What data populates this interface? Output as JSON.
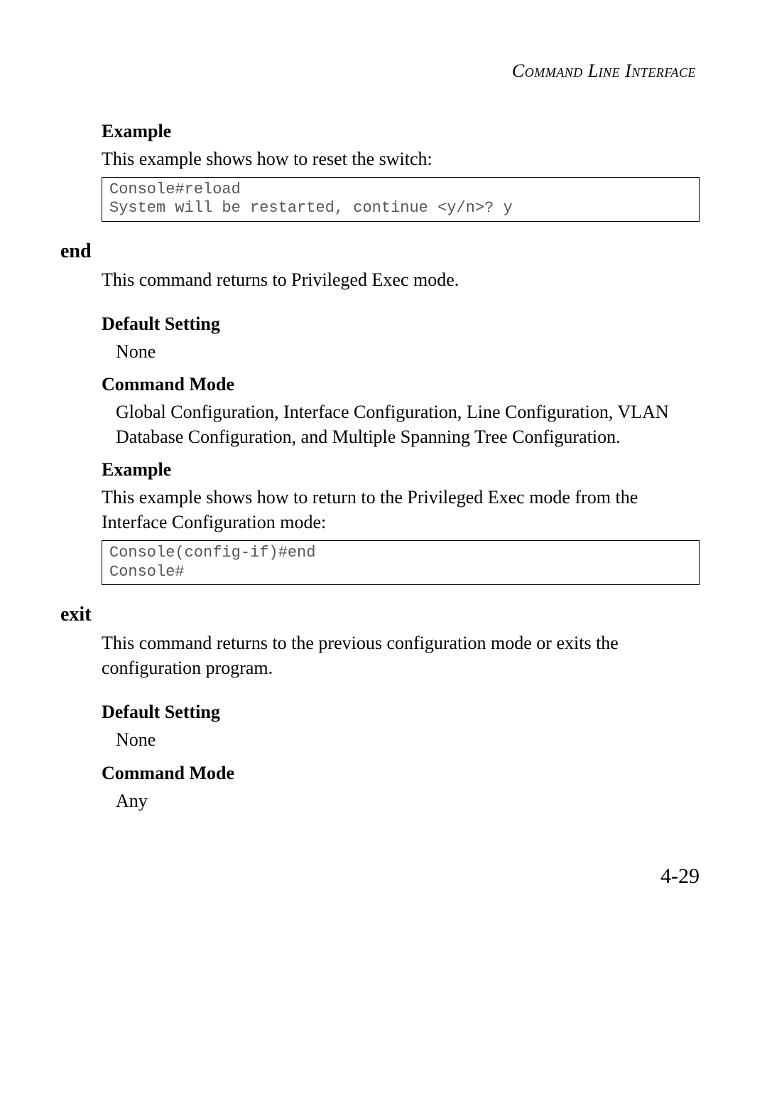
{
  "header": {
    "title": "Command Line Interface"
  },
  "section1": {
    "heading": "Example",
    "intro": "This example shows how to reset the switch:",
    "code": "Console#reload\nSystem will be restarted, continue <y/n>? y"
  },
  "end_cmd": {
    "name": "end",
    "desc": "This command returns to Privileged Exec mode.",
    "default_heading": "Default Setting",
    "default_value": "None",
    "mode_heading": "Command Mode",
    "mode_value": "Global Configuration, Interface Configuration, Line Configuration, VLAN Database Configuration, and Multiple Spanning Tree Configuration.",
    "example_heading": "Example",
    "example_intro": "This example shows how to return to the Privileged Exec mode from the Interface Configuration mode:",
    "example_code": "Console(config-if)#end\nConsole#"
  },
  "exit_cmd": {
    "name": "exit",
    "desc": "This command returns to the previous configuration mode or exits the configuration program.",
    "default_heading": "Default Setting",
    "default_value": "None",
    "mode_heading": "Command Mode",
    "mode_value": "Any"
  },
  "page_number": "4-29",
  "style": {
    "background_color": "#ffffff",
    "text_color": "#000000",
    "code_text_color": "#555555",
    "code_border_color": "#000000",
    "body_font": "Garamond serif",
    "code_font": "Courier New monospace",
    "heading_fontsize": 26,
    "body_fontsize": 26,
    "code_fontsize": 22,
    "command_name_fontsize": 28,
    "page_number_fontsize": 30
  }
}
